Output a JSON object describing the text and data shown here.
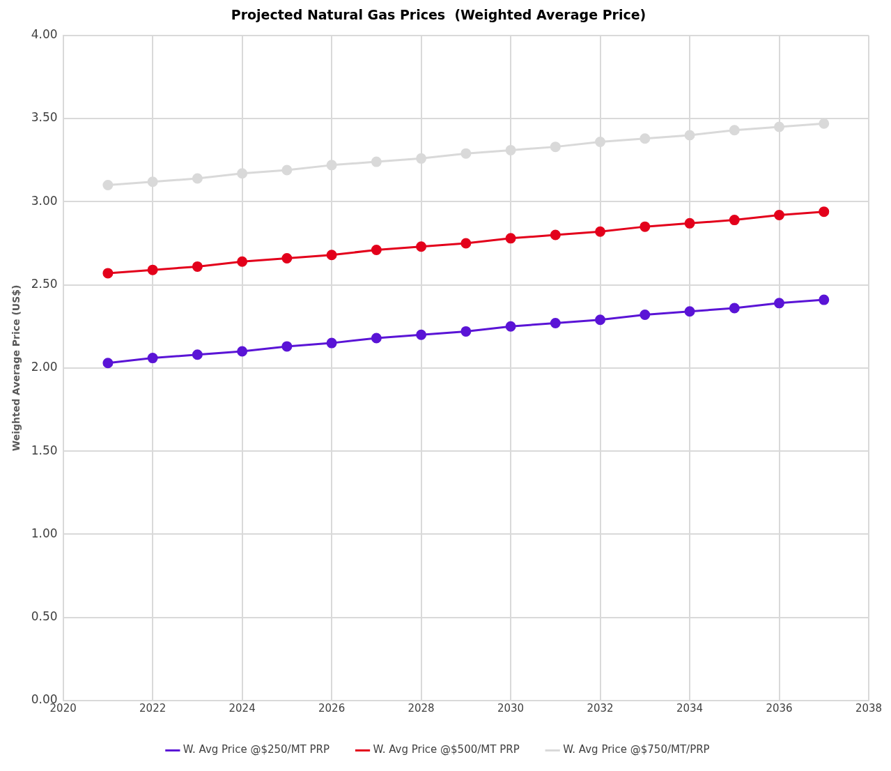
{
  "chart_data": {
    "type": "line",
    "title": "Projected Natural Gas Prices  (Weighted Average Price)",
    "ylabel": "Weighted Average Price (US$)",
    "x": [
      2021,
      2022,
      2023,
      2024,
      2025,
      2026,
      2027,
      2028,
      2029,
      2030,
      2031,
      2032,
      2033,
      2034,
      2035,
      2036,
      2037
    ],
    "series": [
      {
        "name": "W. Avg Price @$250/MT PRP",
        "color": "#5a14d6",
        "values": [
          2.03,
          2.06,
          2.08,
          2.1,
          2.13,
          2.15,
          2.18,
          2.2,
          2.22,
          2.25,
          2.27,
          2.29,
          2.32,
          2.34,
          2.36,
          2.39,
          2.41
        ]
      },
      {
        "name": "W. Avg Price @$500/MT PRP",
        "color": "#e3001b",
        "values": [
          2.57,
          2.59,
          2.61,
          2.64,
          2.66,
          2.68,
          2.71,
          2.73,
          2.75,
          2.78,
          2.8,
          2.82,
          2.85,
          2.87,
          2.89,
          2.92,
          2.94
        ]
      },
      {
        "name": "W. Avg Price @$750/MT/PRP",
        "color": "#d9d9d9",
        "values": [
          3.1,
          3.12,
          3.14,
          3.17,
          3.19,
          3.22,
          3.24,
          3.26,
          3.29,
          3.31,
          3.33,
          3.36,
          3.38,
          3.4,
          3.43,
          3.45,
          3.47
        ]
      }
    ],
    "xlim": [
      2020,
      2038
    ],
    "xticks": [
      2020,
      2022,
      2024,
      2026,
      2028,
      2030,
      2032,
      2034,
      2036,
      2038
    ],
    "ylim": [
      0,
      4
    ],
    "yticks": [
      {
        "value": 0,
        "label": "0.00"
      },
      {
        "value": 0.5,
        "label": "0.50"
      },
      {
        "value": 1,
        "label": "1.00"
      },
      {
        "value": 1.5,
        "label": "1.50"
      },
      {
        "value": 2,
        "label": "2.00"
      },
      {
        "value": 2.5,
        "label": "2.50"
      },
      {
        "value": 3,
        "label": "3.00"
      },
      {
        "value": 3.5,
        "label": "3.50"
      },
      {
        "value": 4,
        "label": "4.00"
      }
    ],
    "grid": true,
    "legend": "bottom",
    "marker": "circle",
    "line_style": "solid"
  }
}
